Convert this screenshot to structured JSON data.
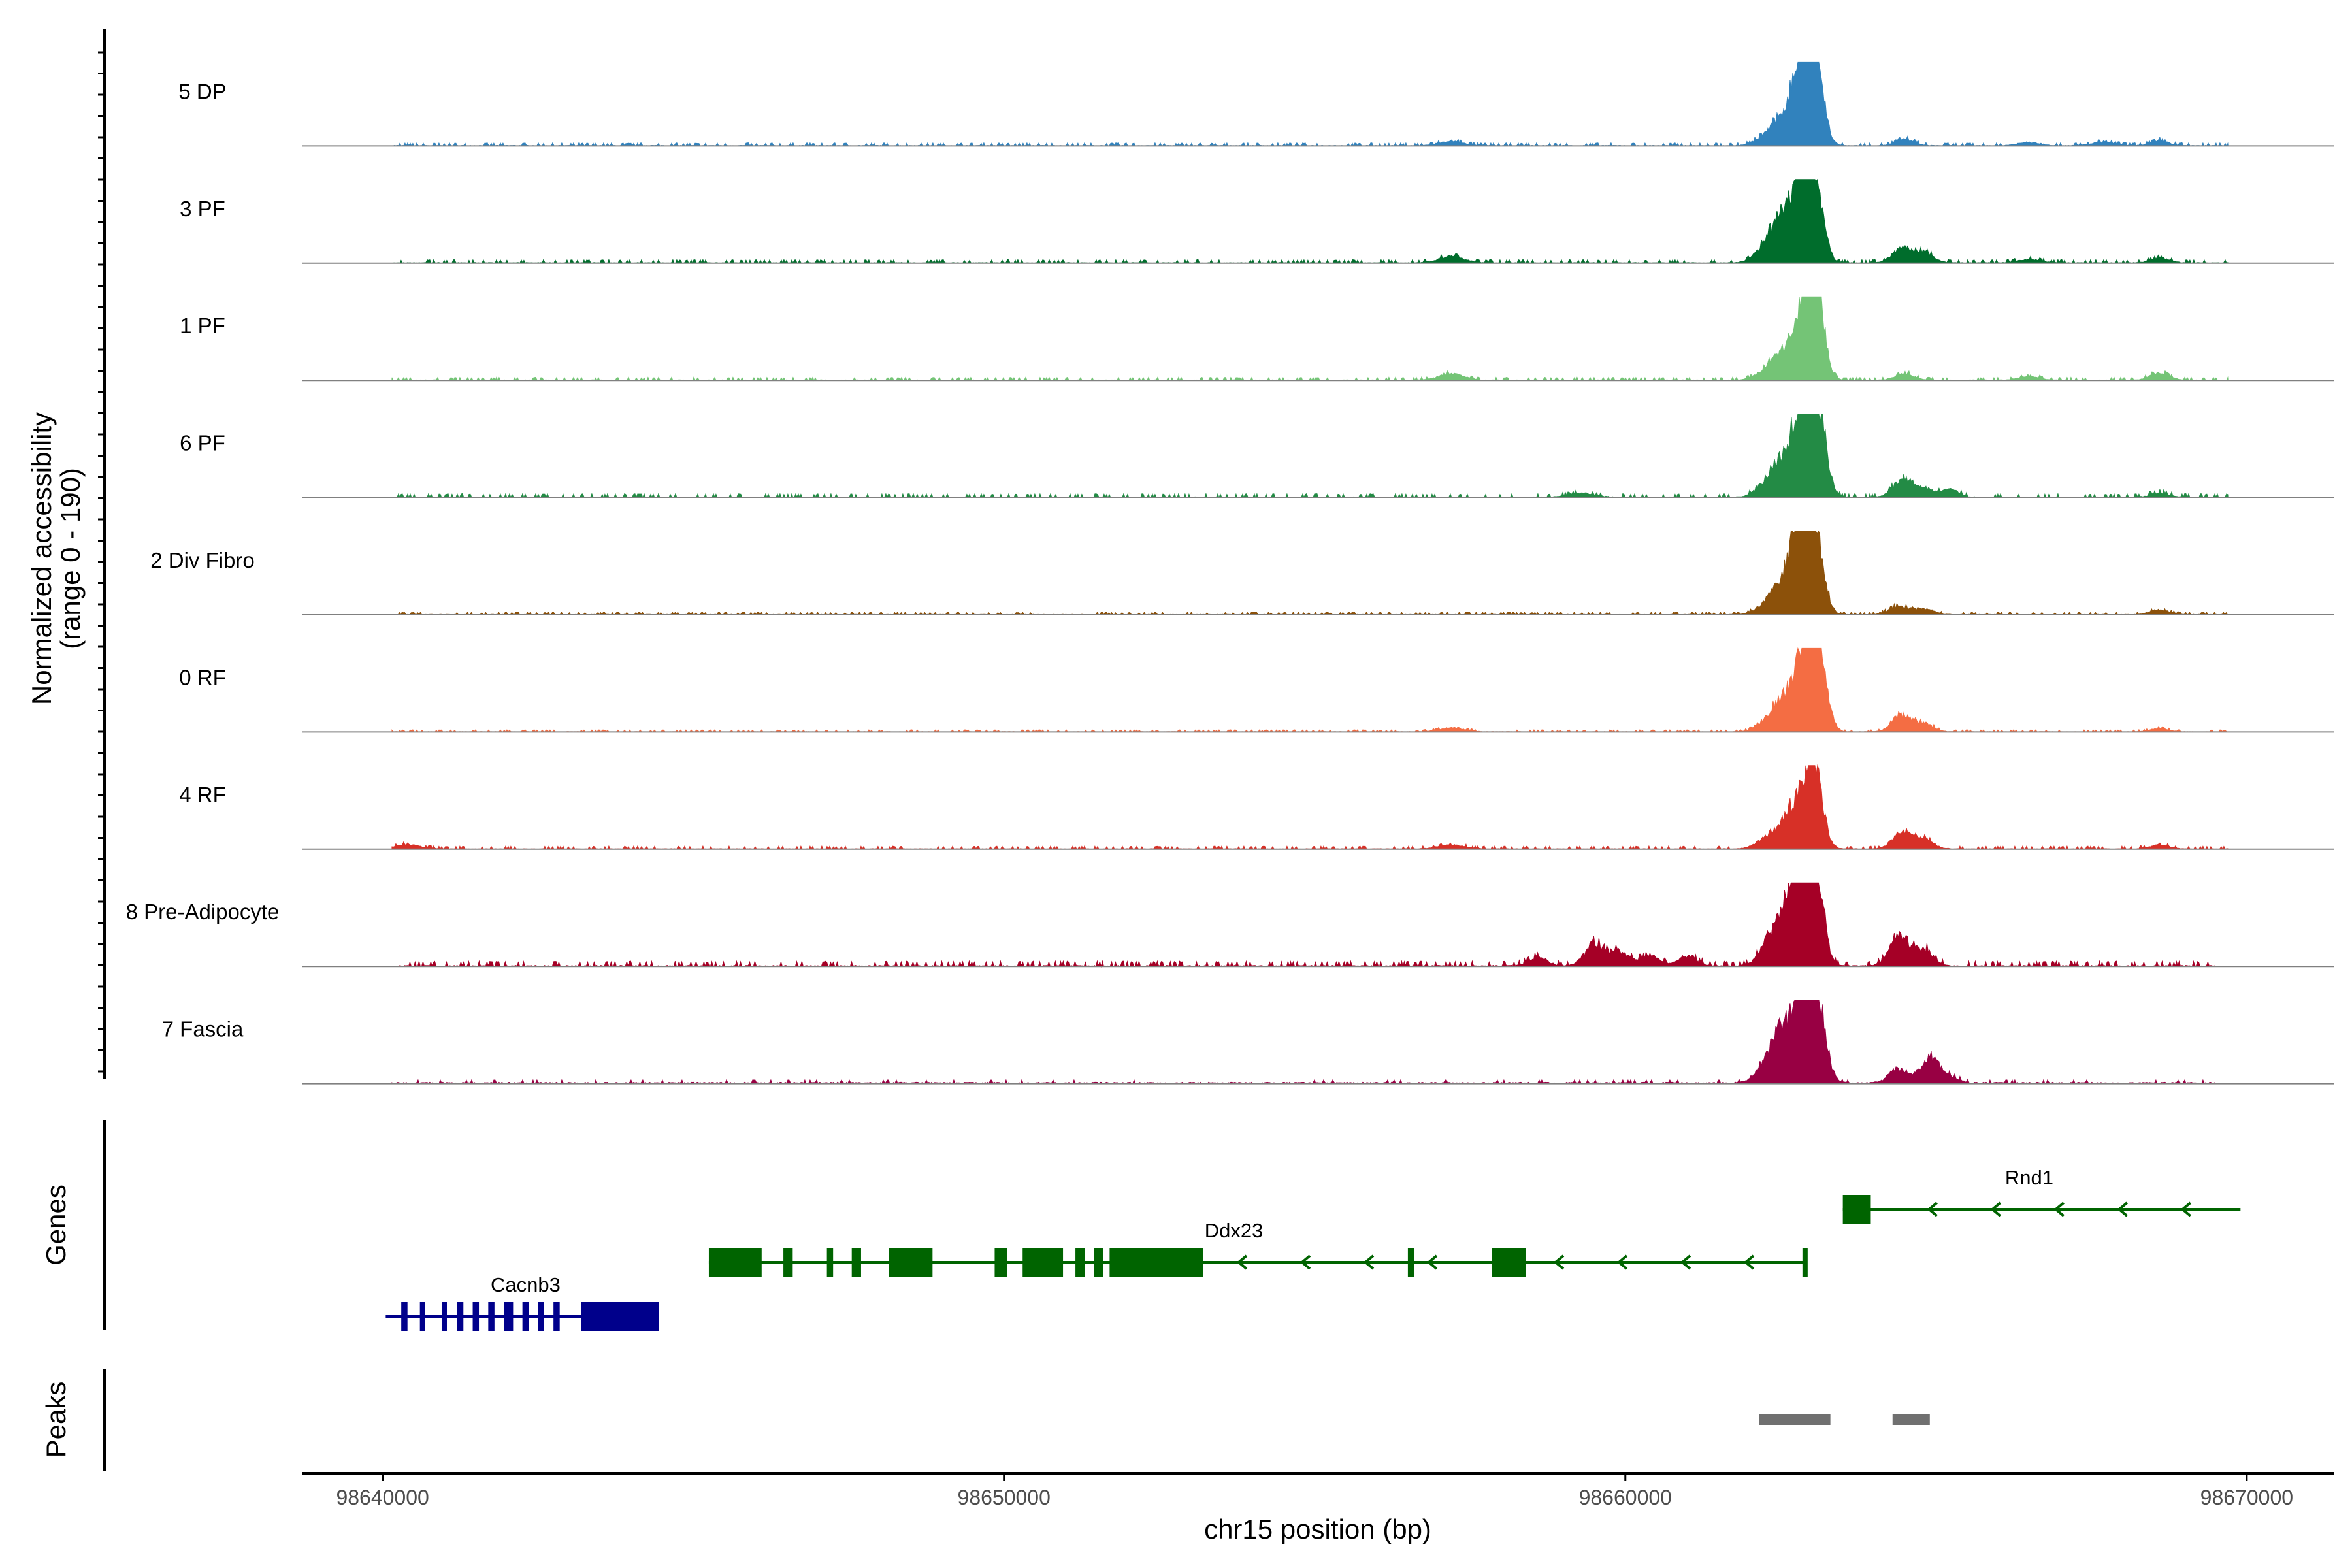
{
  "chart_data": {
    "type": "area",
    "title": "",
    "ylabel_line1": "Normalized accessibility",
    "ylabel_line2": "(range 0 - 190)",
    "xlabel": "chr15 position (bp)",
    "xlim": [
      98638700,
      98671400
    ],
    "y_range": [
      0,
      190
    ],
    "x_ticks": [
      {
        "value": 98640000,
        "label": "98640000"
      },
      {
        "value": 98650000,
        "label": "98650000"
      },
      {
        "value": 98660000,
        "label": "98660000"
      },
      {
        "value": 98670000,
        "label": "98670000"
      }
    ],
    "tracks": [
      {
        "name": "5 DP",
        "color": "#3182bd",
        "noise": 7,
        "start": 98640150,
        "end": 98669700,
        "dense": false,
        "peaks": [
          [
            98662300,
            25,
            180
          ],
          [
            98662500,
            35,
            150
          ],
          [
            98662700,
            55,
            150
          ],
          [
            98662800,
            85,
            120
          ],
          [
            98662950,
            185,
            140
          ],
          [
            98663100,
            110,
            120
          ],
          [
            98664500,
            15,
            150
          ],
          [
            98666500,
            8,
            180
          ],
          [
            98667700,
            8,
            200
          ],
          [
            98668600,
            12,
            150
          ],
          [
            98657200,
            10,
            200
          ]
        ]
      },
      {
        "name": "3 PF",
        "color": "#006d2c",
        "noise": 8,
        "start": 98640150,
        "end": 98669700,
        "dense": false,
        "peaks": [
          [
            98662300,
            45,
            180
          ],
          [
            98662500,
            60,
            150
          ],
          [
            98662700,
            80,
            150
          ],
          [
            98662850,
            100,
            130
          ],
          [
            98662950,
            185,
            140
          ],
          [
            98663100,
            90,
            120
          ],
          [
            98664450,
            35,
            150
          ],
          [
            98664800,
            25,
            150
          ],
          [
            98666500,
            8,
            180
          ],
          [
            98668600,
            12,
            150
          ],
          [
            98657200,
            15,
            200
          ]
        ]
      },
      {
        "name": "1 PF",
        "color": "#74c476",
        "noise": 7,
        "start": 98640150,
        "end": 98669700,
        "dense": false,
        "peaks": [
          [
            98662300,
            25,
            180
          ],
          [
            98662500,
            35,
            150
          ],
          [
            98662700,
            50,
            150
          ],
          [
            98662850,
            85,
            130
          ],
          [
            98663000,
            185,
            140
          ],
          [
            98663100,
            90,
            120
          ],
          [
            98664500,
            15,
            150
          ],
          [
            98666500,
            8,
            180
          ],
          [
            98668600,
            18,
            150
          ],
          [
            98657200,
            15,
            200
          ]
        ]
      },
      {
        "name": "6 PF",
        "color": "#238b45",
        "noise": 9,
        "start": 98640150,
        "end": 98669700,
        "dense": false,
        "peaks": [
          [
            98662300,
            35,
            180
          ],
          [
            98662500,
            50,
            150
          ],
          [
            98662700,
            80,
            150
          ],
          [
            98662850,
            110,
            130
          ],
          [
            98663000,
            185,
            140
          ],
          [
            98663150,
            100,
            120
          ],
          [
            98664450,
            40,
            150
          ],
          [
            98664750,
            25,
            150
          ],
          [
            98665200,
            20,
            150
          ],
          [
            98659300,
            10,
            200
          ],
          [
            98668600,
            10,
            150
          ]
        ]
      },
      {
        "name": "2 Div Fibro",
        "color": "#8c510a",
        "noise": 6,
        "start": 98640250,
        "end": 98669700,
        "dense": false,
        "peaks": [
          [
            98662300,
            25,
            180
          ],
          [
            98662500,
            45,
            150
          ],
          [
            98662700,
            70,
            150
          ],
          [
            98662800,
            100,
            130
          ],
          [
            98662950,
            185,
            140
          ],
          [
            98663100,
            100,
            120
          ],
          [
            98664400,
            20,
            150
          ],
          [
            98664800,
            15,
            150
          ],
          [
            98668600,
            12,
            150
          ]
        ]
      },
      {
        "name": "0 RF",
        "color": "#f46d43",
        "noise": 5,
        "start": 98640150,
        "end": 98669700,
        "dense": false,
        "peaks": [
          [
            98662300,
            25,
            180
          ],
          [
            98662500,
            45,
            150
          ],
          [
            98662700,
            60,
            150
          ],
          [
            98662850,
            90,
            130
          ],
          [
            98663000,
            185,
            140
          ],
          [
            98663150,
            100,
            120
          ],
          [
            98664450,
            40,
            150
          ],
          [
            98664800,
            20,
            150
          ],
          [
            98657200,
            10,
            200
          ],
          [
            98668600,
            8,
            150
          ]
        ]
      },
      {
        "name": "4 RF",
        "color": "#d73027",
        "noise": 7,
        "start": 98640150,
        "end": 98669700,
        "dense": false,
        "peaks": [
          [
            98662300,
            25,
            180
          ],
          [
            98662550,
            45,
            150
          ],
          [
            98662750,
            55,
            150
          ],
          [
            98662950,
            155,
            140
          ],
          [
            98663100,
            80,
            120
          ],
          [
            98664450,
            40,
            150
          ],
          [
            98664800,
            25,
            150
          ],
          [
            98640400,
            10,
            200
          ],
          [
            98657200,
            10,
            200
          ],
          [
            98668600,
            10,
            150
          ]
        ]
      },
      {
        "name": "8 Pre-Adipocyte",
        "color": "#a50026",
        "noise": 12,
        "start": 98640250,
        "end": 98669500,
        "dense": false,
        "peaks": [
          [
            98659500,
            55,
            150
          ],
          [
            98659900,
            35,
            150
          ],
          [
            98662300,
            55,
            150
          ],
          [
            98662550,
            85,
            150
          ],
          [
            98662750,
            145,
            150
          ],
          [
            98662950,
            190,
            140
          ],
          [
            98663100,
            120,
            120
          ],
          [
            98664400,
            75,
            150
          ],
          [
            98664800,
            40,
            150
          ],
          [
            98660400,
            25,
            150
          ],
          [
            98661000,
            25,
            150
          ],
          [
            98658600,
            20,
            150
          ]
        ]
      },
      {
        "name": "7 Fascia",
        "color": "#980043",
        "noise": 6,
        "start": 98640150,
        "end": 98669500,
        "dense": true,
        "peaks": [
          [
            98662300,
            45,
            180
          ],
          [
            98662500,
            75,
            150
          ],
          [
            98662700,
            100,
            150
          ],
          [
            98662900,
            120,
            130
          ],
          [
            98663000,
            145,
            140
          ],
          [
            98663150,
            90,
            120
          ],
          [
            98664400,
            35,
            150
          ],
          [
            98664900,
            60,
            150
          ],
          [
            98665200,
            15,
            150
          ]
        ]
      }
    ],
    "genes": [
      {
        "name": "Cacnb3",
        "color": "#00008b",
        "strand": "+",
        "start": 98640050,
        "end": 98644450,
        "row": 2,
        "label_x": 98642300,
        "exons": [
          [
            98640300,
            98640400
          ],
          [
            98640600,
            98640650
          ],
          [
            98640950,
            98641000
          ],
          [
            98641200,
            98641300
          ],
          [
            98641450,
            98641550
          ],
          [
            98641700,
            98641800
          ],
          [
            98641950,
            98642100
          ],
          [
            98642250,
            98642350
          ],
          [
            98642500,
            98642600
          ],
          [
            98642750,
            98642850
          ],
          [
            98643200,
            98644450
          ]
        ]
      },
      {
        "name": "Ddx23",
        "color": "#006400",
        "strand": "-",
        "start": 98645250,
        "end": 98662900,
        "row": 1,
        "label_x": 98653700,
        "exons": [
          [
            98645250,
            98646100
          ],
          [
            98646450,
            98646600
          ],
          [
            98647150,
            98647250
          ],
          [
            98647550,
            98647700
          ],
          [
            98648150,
            98648850
          ],
          [
            98649850,
            98650050
          ],
          [
            98650300,
            98650950
          ],
          [
            98651150,
            98651300
          ],
          [
            98651450,
            98651600
          ],
          [
            98651700,
            98653200
          ],
          [
            98656500,
            98656600
          ],
          [
            98657850,
            98658400
          ],
          [
            98662850,
            98662900
          ]
        ]
      },
      {
        "name": "Rnd1",
        "color": "#006400",
        "strand": "-",
        "start": 98663500,
        "end": 98669900,
        "row": 0,
        "label_x": 98666500,
        "exons": [
          [
            98663500,
            98663950
          ]
        ]
      }
    ],
    "peaks": [
      {
        "start": 98662150,
        "end": 98663300
      },
      {
        "start": 98664300,
        "end": 98664900
      }
    ]
  },
  "panels": {
    "genes_label": "Genes",
    "peaks_label": "Peaks"
  },
  "colors": {
    "axis": "#000000",
    "baseline": "#808080",
    "peak_box": "#707070",
    "tick_text": "#4d4d4d"
  }
}
